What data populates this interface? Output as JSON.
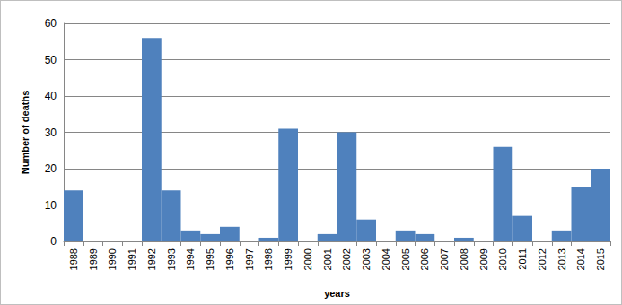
{
  "chart_data": {
    "type": "bar",
    "x_label": "years",
    "y_label": "Number of deaths",
    "categories": [
      "1988",
      "1989",
      "1990",
      "1991",
      "1992",
      "1993",
      "1994",
      "1995",
      "1996",
      "1997",
      "1998",
      "1999",
      "2000",
      "2001",
      "2002",
      "2003",
      "2004",
      "2005",
      "2006",
      "2007",
      "2008",
      "2009",
      "2010",
      "2011",
      "2012",
      "2013",
      "2014",
      "2015"
    ],
    "values": [
      14,
      0,
      0,
      0,
      56,
      14,
      3,
      2,
      4,
      0,
      1,
      31,
      0,
      2,
      30,
      6,
      0,
      3,
      2,
      0,
      1,
      0,
      26,
      7,
      0,
      3,
      15,
      20
    ],
    "color": "#4f81bd",
    "ylim": [
      0,
      60
    ],
    "yticks": [
      0,
      10,
      20,
      30,
      40,
      50,
      60
    ],
    "grid": true
  }
}
